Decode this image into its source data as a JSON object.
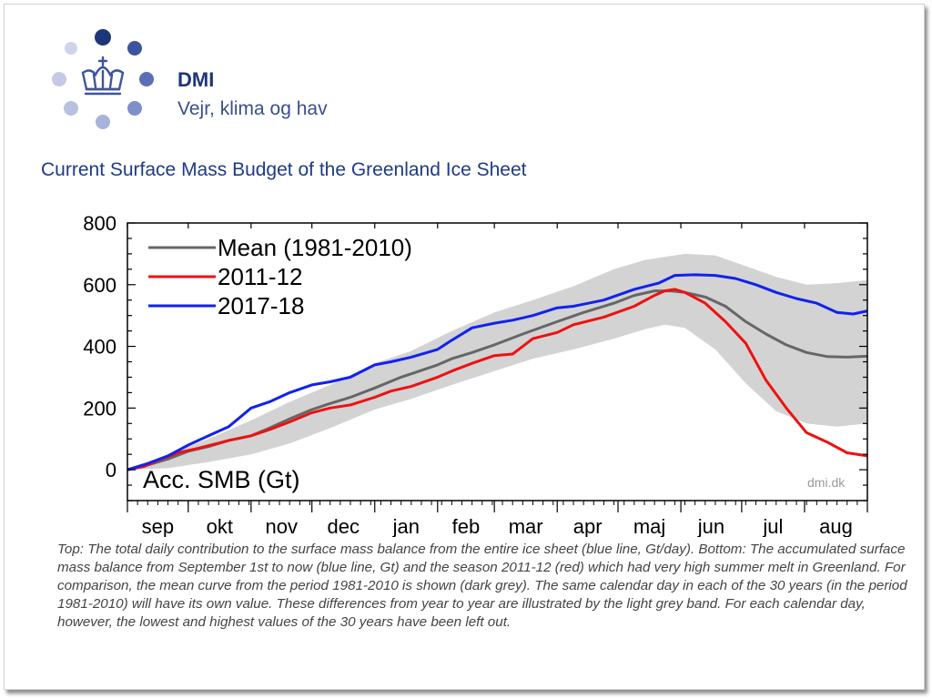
{
  "brand": {
    "name": "DMI",
    "tagline": "Vejr, klima og hav"
  },
  "chart_heading": "Current Surface Mass Budget of the Greenland Ice Sheet",
  "caption": "Top: The total daily contribution to the surface mass balance from the entire ice sheet (blue line, Gt/day). Bottom: The accumulated surface mass balance from September 1st to now (blue line, Gt) and the season 2011-12 (red) which had very high summer melt in Greenland. For comparison, the mean curve from the period 1981-2010 is shown (dark grey). The same calendar day in each of the 30 years (in the period 1981-2010) will have its own value. These differences from year to year are illustrated by the light grey band. For each calendar day, however, the lowest and highest values of the 30 years have been left out.",
  "colors": {
    "mean": "#666666",
    "red": "#ee1111",
    "blue": "#1122ee",
    "band": "#d3d3d3",
    "logo_dark": "#1c3778"
  },
  "chart_data": {
    "type": "line",
    "ylabel": "Acc. SMB (Gt)",
    "watermark": "dmi.dk",
    "ylim": [
      -100,
      800
    ],
    "xlim": [
      0,
      365
    ],
    "yticks": [
      0,
      200,
      400,
      600,
      800
    ],
    "month_labels": [
      "sep",
      "okt",
      "nov",
      "dec",
      "jan",
      "feb",
      "mar",
      "apr",
      "maj",
      "jun",
      "jul",
      "aug"
    ],
    "grid": false,
    "legend_position": "top-left",
    "series": [
      {
        "name": "Mean (1981-2010)",
        "color": "#666666",
        "x": [
          0,
          10,
          20,
          30,
          40,
          50,
          61,
          70,
          80,
          91,
          100,
          110,
          122,
          135,
          153,
          160,
          170,
          181,
          195,
          212,
          225,
          240,
          250,
          260,
          268,
          275,
          285,
          295,
          305,
          315,
          325,
          335,
          345,
          355,
          365
        ],
        "y": [
          0,
          15,
          35,
          60,
          75,
          95,
          110,
          135,
          165,
          195,
          215,
          235,
          265,
          300,
          340,
          360,
          380,
          405,
          440,
          480,
          510,
          540,
          565,
          580,
          580,
          575,
          560,
          530,
          480,
          440,
          405,
          380,
          367,
          365,
          368
        ]
      },
      {
        "name": "2011-12",
        "color": "#ee1111",
        "x": [
          0,
          8,
          15,
          25,
          35,
          50,
          61,
          70,
          80,
          91,
          100,
          110,
          122,
          130,
          140,
          153,
          160,
          170,
          181,
          190,
          200,
          212,
          220,
          235,
          250,
          260,
          265,
          270,
          275,
          285,
          295,
          305,
          315,
          325,
          335,
          345,
          355,
          365
        ],
        "y": [
          0,
          10,
          30,
          55,
          70,
          95,
          110,
          130,
          155,
          185,
          200,
          210,
          235,
          255,
          270,
          300,
          320,
          345,
          370,
          375,
          425,
          445,
          470,
          495,
          530,
          565,
          580,
          585,
          575,
          540,
          480,
          410,
          290,
          200,
          120,
          90,
          55,
          45
        ]
      },
      {
        "name": "2017-18",
        "color": "#1122ee",
        "x": [
          0,
          10,
          20,
          30,
          40,
          50,
          61,
          70,
          80,
          91,
          100,
          110,
          122,
          130,
          140,
          153,
          160,
          170,
          181,
          190,
          200,
          212,
          220,
          235,
          250,
          262,
          270,
          280,
          290,
          300,
          310,
          320,
          330,
          340,
          350,
          358,
          365
        ],
        "y": [
          0,
          20,
          45,
          80,
          110,
          140,
          200,
          220,
          250,
          275,
          285,
          300,
          340,
          350,
          365,
          390,
          420,
          460,
          475,
          485,
          500,
          525,
          530,
          550,
          585,
          605,
          630,
          632,
          630,
          620,
          600,
          575,
          555,
          540,
          510,
          505,
          515
        ]
      }
    ],
    "band": {
      "x": [
        0,
        20,
        40,
        61,
        80,
        100,
        122,
        140,
        160,
        181,
        200,
        220,
        240,
        255,
        265,
        275,
        290,
        305,
        320,
        335,
        350,
        365
      ],
      "lower": [
        0,
        5,
        25,
        50,
        85,
        135,
        195,
        230,
        275,
        320,
        360,
        390,
        425,
        455,
        470,
        460,
        390,
        280,
        190,
        150,
        140,
        150
      ],
      "upper": [
        0,
        50,
        100,
        160,
        220,
        275,
        345,
        385,
        450,
        510,
        550,
        595,
        650,
        680,
        690,
        700,
        695,
        660,
        625,
        600,
        605,
        615
      ]
    }
  }
}
